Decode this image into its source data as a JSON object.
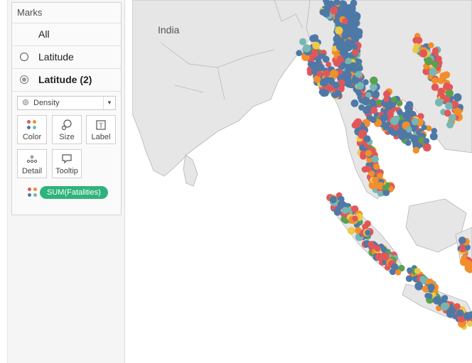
{
  "marks": {
    "title": "Marks",
    "layers": [
      {
        "label": "All",
        "selected": false,
        "bold": false
      },
      {
        "label": "Latitude",
        "selected": false,
        "bold": false
      },
      {
        "label": "Latitude (2)",
        "selected": true,
        "bold": true
      }
    ],
    "mark_type": "Density",
    "shelves": [
      {
        "label": "Color",
        "icon": "color-icon"
      },
      {
        "label": "Size",
        "icon": "size-icon"
      },
      {
        "label": "Label",
        "icon": "label-icon"
      },
      {
        "label": "Detail",
        "icon": "detail-icon"
      },
      {
        "label": "Tooltip",
        "icon": "tooltip-icon"
      }
    ],
    "color_pill": "SUM(Fatalities)"
  },
  "map": {
    "country_label": "India",
    "colors": {
      "land": "#e6e6e6",
      "border": "#aaaaaa",
      "red": "#e15759",
      "blue": "#4e79a7",
      "orange": "#f28e2b",
      "green": "#59a14f",
      "yellow": "#edc948",
      "teal": "#76b7b2"
    }
  }
}
